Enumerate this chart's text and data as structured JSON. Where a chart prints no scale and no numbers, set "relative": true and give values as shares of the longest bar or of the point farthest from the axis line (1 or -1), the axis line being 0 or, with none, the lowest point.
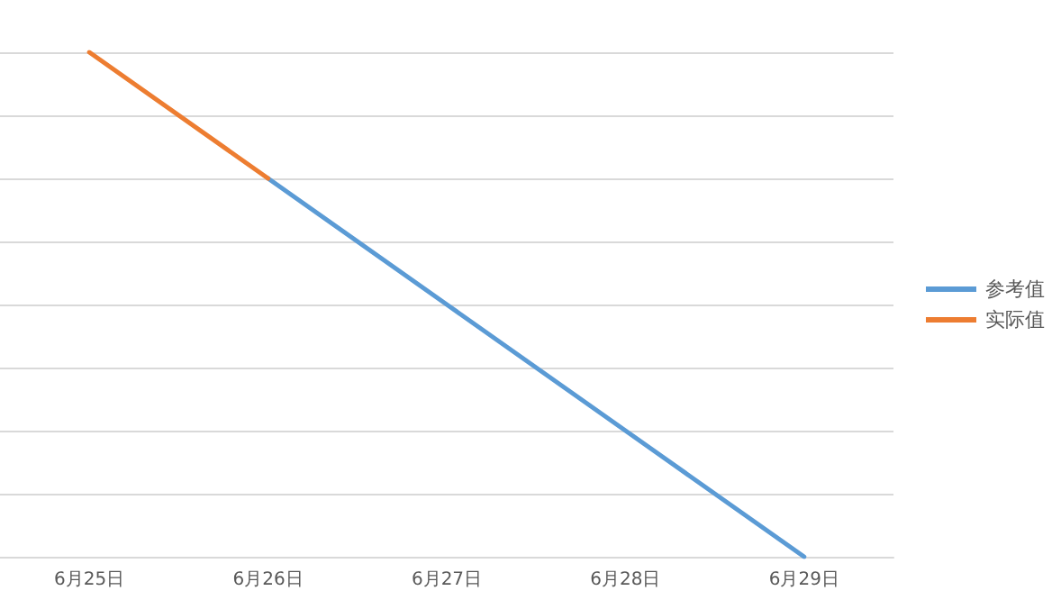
{
  "chart_data": {
    "type": "line",
    "relative": true,
    "categories": [
      "6月25日",
      "6月26日",
      "6月27日",
      "6月28日",
      "6月29日"
    ],
    "series": [
      {
        "name": "参考值",
        "color": "#5b9bd5",
        "values": [
          null,
          0.75,
          0.5,
          0.25,
          0
        ]
      },
      {
        "name": "实际值",
        "color": "#ed7d31",
        "values": [
          1,
          0.75,
          null,
          null,
          null
        ]
      }
    ],
    "grid": "y",
    "legend": "right",
    "marker": "none",
    "line_style": "solid"
  }
}
